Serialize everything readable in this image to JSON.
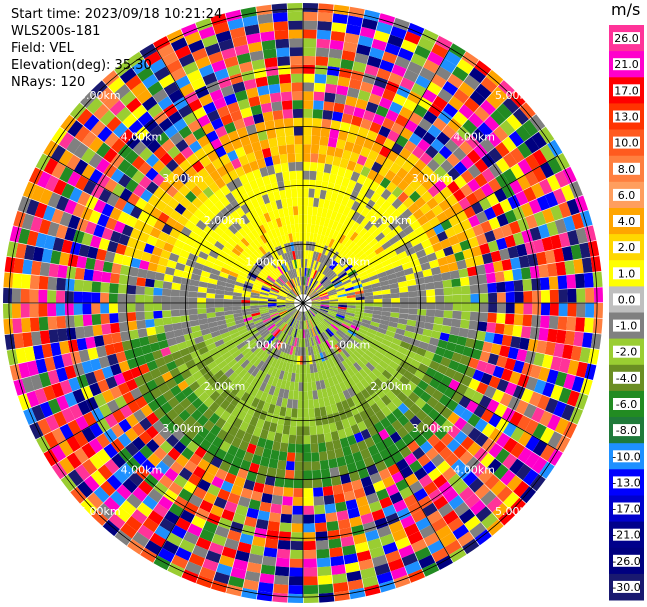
{
  "info": {
    "start_time": "Start time: 2023/09/18 10:21:24",
    "station": "WLS200s-181",
    "field": "Field: VEL",
    "elevation": "Elevation(deg): 35.30",
    "nrays": "NRays: 120"
  },
  "chart_data": {
    "type": "heatmap",
    "subtype": "polar-ppi",
    "field": "VEL",
    "units": "m/s",
    "nrays": 120,
    "elevation_deg": 35.3,
    "range_ring_labels": [
      "1.00km",
      "2.00km",
      "3.00km",
      "4.00km",
      "5.00km"
    ],
    "range_rings_km": [
      1,
      2,
      3,
      4,
      5
    ],
    "max_range_km": 5.1,
    "colorbar": {
      "ticks": [
        "26.0",
        "21.0",
        "17.0",
        "13.0",
        "10.0",
        "8.0",
        "6.0",
        "4.0",
        "2.0",
        "1.0",
        "0.0",
        "-1.0",
        "-2.0",
        "-4.0",
        "-6.0",
        "-8.0",
        "-10.0",
        "-13.0",
        "-17.0",
        "-21.0",
        "-26.0",
        "-30.0"
      ],
      "colors": [
        "#ff3399",
        "#ff00cc",
        "#ff0000",
        "#ff3300",
        "#ff5a1f",
        "#ff7f3f",
        "#ff9e5e",
        "#ffa500",
        "#ffd700",
        "#ffff00",
        "#bfbfbf",
        "#808080",
        "#9acd32",
        "#6b8e23",
        "#228b22",
        "#1f7a3a",
        "#1e90ff",
        "#0000ff",
        "#0000cd",
        "#00008b",
        "#000080",
        "#191970"
      ]
    },
    "zones": [
      {
        "range_km": [
          0,
          1.0
        ],
        "dominant_value": "0.0 to -1.0",
        "description": "near-field mixed noise"
      },
      {
        "range_km": [
          1.0,
          2.4
        ],
        "north_half": "2.0 to 4.0",
        "south_half": "-2.0 to -4.0",
        "east_west_band": "-1.0 to 0.0"
      },
      {
        "range_km": [
          2.4,
          3.1
        ],
        "north_half": "4.0 to 6.0",
        "south_half": "-4.0 to -6.0"
      },
      {
        "range_km": [
          3.1,
          5.1
        ],
        "dominant_value": "noise",
        "description": "random mixed velocities"
      }
    ]
  }
}
